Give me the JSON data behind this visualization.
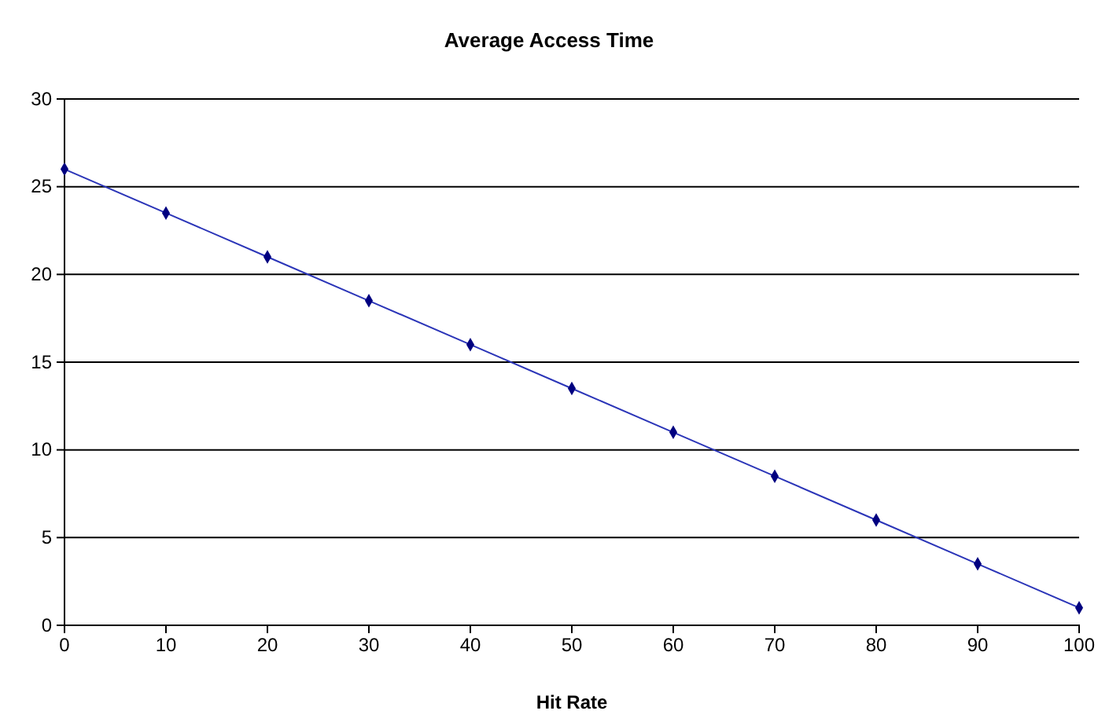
{
  "chart_data": {
    "type": "line",
    "title": "Average Access Time",
    "xlabel": "Hit Rate",
    "x": [
      0,
      10,
      20,
      30,
      40,
      50,
      60,
      70,
      80,
      90,
      100
    ],
    "series": [
      {
        "color": "#2b35b8",
        "values": [
          26,
          23.5,
          21,
          18.5,
          16,
          13.5,
          11,
          8.5,
          6,
          3.5,
          1
        ]
      }
    ],
    "xlim": [
      0,
      100
    ],
    "xticks": [
      0,
      10,
      20,
      30,
      40,
      50,
      60,
      70,
      80,
      90,
      100
    ],
    "ylim": [
      0,
      30
    ],
    "yticks": [
      0,
      5,
      10,
      15,
      20,
      25,
      30
    ],
    "grid": "y",
    "marker": "diamond",
    "line_style": "solid"
  }
}
